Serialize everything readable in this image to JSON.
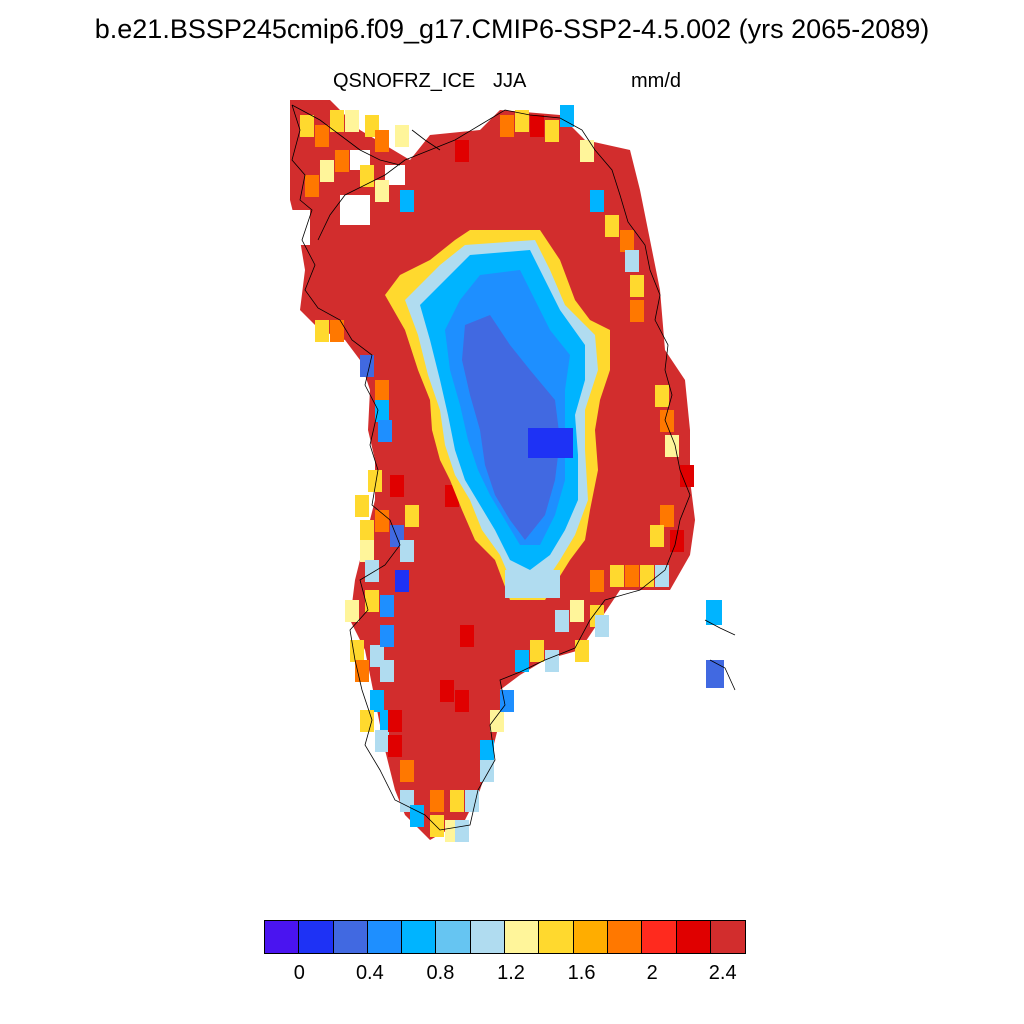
{
  "title": "b.e21.BSSP245cmip6.f09_g17.CMIP6-SSP2-4.5.002 (yrs 2065-2089)",
  "variable": "QSNOFRZ_ICE",
  "season": "JJA",
  "units": "mm/d",
  "colors": {
    "palette": [
      "#4a14f0",
      "#1e32f5",
      "#4169e1",
      "#1e8fff",
      "#00b4ff",
      "#66c5f2",
      "#b0dcf0",
      "#fff59a",
      "#ffd92e",
      "#ffad00",
      "#ff7800",
      "#ff2a1e",
      "#e00000",
      "#d22d2d"
    ]
  },
  "legend": {
    "labels": [
      "0",
      "0.4",
      "0.8",
      "1.2",
      "1.6",
      "2",
      "2.4"
    ]
  },
  "map_features": [
    "greenland-ice-sheet-field",
    "coastline",
    "east-coast-outliers"
  ]
}
